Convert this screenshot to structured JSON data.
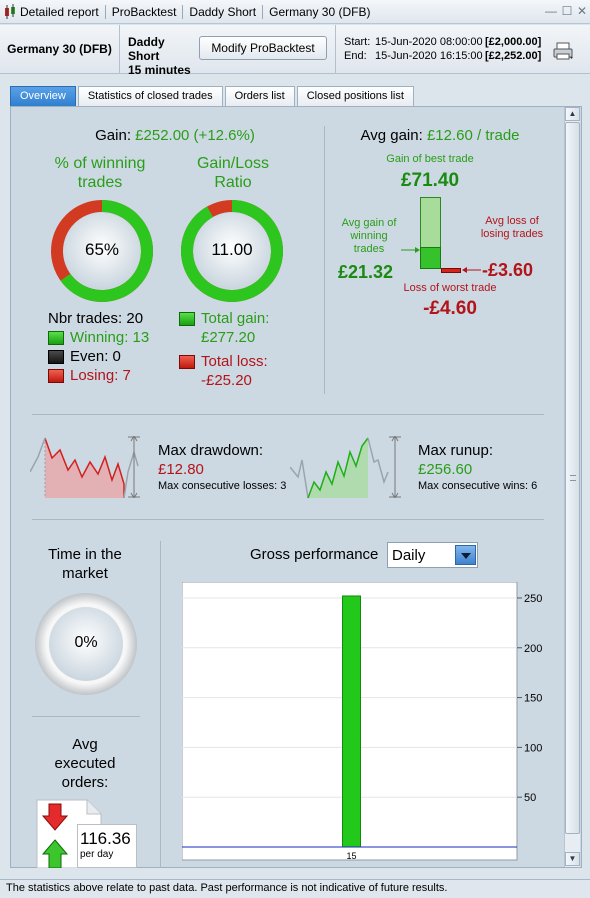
{
  "titlebar": {
    "items": [
      "Detailed report",
      "ProBacktest",
      "Daddy Short",
      "Germany 30 (DFB)"
    ]
  },
  "header": {
    "instrument": "Germany 30 (DFB)",
    "strategy_line1": "Daddy Short",
    "strategy_line2": "15 minutes",
    "modify_label": "Modify ProBacktest",
    "start_label": "Start:",
    "start_date": "15-Jun-2020 08:00:00",
    "start_amount": "[£2,000.00]",
    "end_label": "End:",
    "end_date": "15-Jun-2020 16:15:00",
    "end_amount": "[£2,252.00]"
  },
  "tabs": [
    "Overview",
    "Statistics of closed trades",
    "Orders list",
    "Closed positions list"
  ],
  "overview": {
    "gain_label": "Gain:",
    "gain_value": "£252.00 (+12.6%)",
    "winning_title": "% of winning trades",
    "winning_pct": "65%",
    "winning_fraction": 0.65,
    "ratio_title": "Gain/Loss Ratio",
    "ratio_value": "11.00",
    "ratio_fraction": 0.917,
    "nbr_trades": "Nbr trades: 20",
    "winning": "Winning: 13",
    "even": "Even: 0",
    "losing": "Losing: 7",
    "total_gain_label": "Total gain:",
    "total_gain_value": "£277.20",
    "total_loss_label": "Total loss:",
    "total_loss_value": "-£25.20",
    "avg_gain_label": "Avg gain:",
    "avg_gain_value": "£12.60 / trade",
    "best_trade_label": "Gain of best trade",
    "best_trade_value": "£71.40",
    "avg_win_label": "Avg gain of winning trades",
    "avg_win_value": "£21.32",
    "avg_loss_label": "Avg loss of losing trades",
    "avg_loss_value": "-£3.60",
    "worst_trade_label": "Loss of worst trade",
    "worst_trade_value": "-£4.60",
    "max_drawdown_label": "Max drawdown:",
    "max_drawdown_value": "£12.80",
    "max_consec_losses": "Max consecutive losses: 3",
    "max_runup_label": "Max runup:",
    "max_runup_value": "£256.60",
    "max_consec_wins": "Max consecutive wins: 6",
    "time_market_title": "Time in the market",
    "time_market_value": "0%",
    "avg_orders_title": "Avg executed orders:",
    "avg_orders_value": "116.36",
    "avg_orders_unit": "per day",
    "gross_perf_label": "Gross performance",
    "gross_perf_option": "Daily"
  },
  "colors": {
    "green": "#2a9d18",
    "red": "#b3141a",
    "bar_green": "#22c81a",
    "accent_blue": "#2f7fd0"
  },
  "chart_data": {
    "type": "bar",
    "categories": [
      "15"
    ],
    "values": [
      252
    ],
    "title": "Gross performance",
    "xlabel": "",
    "ylabel": "",
    "ylim": [
      0,
      260
    ],
    "yticks": [
      50,
      100,
      150,
      200,
      250
    ],
    "grid": true
  },
  "status": "The statistics above relate to past data. Past performance is not indicative of future results."
}
